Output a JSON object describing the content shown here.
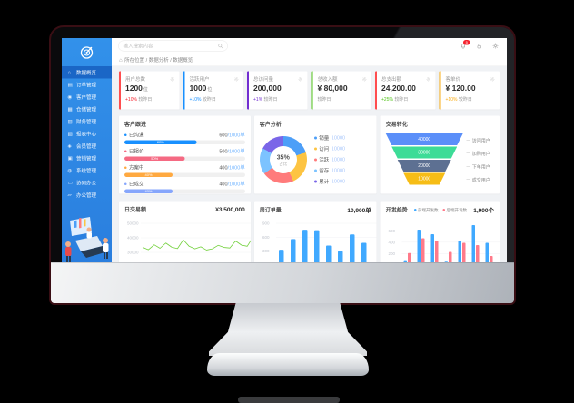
{
  "header": {
    "search_placeholder": "输入搜索内容",
    "breadcrumb": "所在位置 / 数据分析 / 数据概览",
    "home_icon": "⌂",
    "badge": "5"
  },
  "sidebar": {
    "items": [
      {
        "label": "数据概览",
        "icon": "home",
        "glyph": "⌂",
        "active": true
      },
      {
        "label": "订单管理",
        "icon": "orders",
        "glyph": "▤",
        "active": false
      },
      {
        "label": "客户管理",
        "icon": "customers",
        "glyph": "◉",
        "active": false
      },
      {
        "label": "仓储管理",
        "icon": "warehouse",
        "glyph": "▦",
        "active": false
      },
      {
        "label": "财务管理",
        "icon": "finance",
        "glyph": "▥",
        "active": false
      },
      {
        "label": "报表中心",
        "icon": "reports",
        "glyph": "▧",
        "active": false
      },
      {
        "label": "会员管理",
        "icon": "members",
        "glyph": "◈",
        "active": false
      },
      {
        "label": "营销管理",
        "icon": "marketing",
        "glyph": "▣",
        "active": false
      },
      {
        "label": "系统管理",
        "icon": "system",
        "glyph": "◍",
        "active": false
      },
      {
        "label": "协同办公",
        "icon": "collaboration",
        "glyph": "▭",
        "active": false
      },
      {
        "label": "办公管理",
        "icon": "office",
        "glyph": "▱",
        "active": false
      }
    ]
  },
  "stat_cards": [
    {
      "title": "用户总数",
      "value": "1200",
      "unit": "位",
      "delta": "+10%",
      "delta_color": "#f5222d",
      "note": "较昨日",
      "accent": "#ff4d4f"
    },
    {
      "title": "活跃用户",
      "value": "1000",
      "unit": "位",
      "delta": "+10%",
      "delta_color": "#1890ff",
      "note": "较昨日",
      "accent": "#1890ff"
    },
    {
      "title": "总访问量",
      "value": "200,000",
      "unit": "",
      "delta": "+1%",
      "delta_color": "#722ed1",
      "note": "较昨日",
      "accent": "#722ed1"
    },
    {
      "title": "总收入额",
      "value": "¥ 80,000",
      "unit": "",
      "delta": "",
      "delta_color": "#52c41a",
      "note": "较昨日",
      "accent": "#52c41a"
    },
    {
      "title": "总支出额",
      "value": "24,200.00",
      "unit": "",
      "delta": "+25%",
      "delta_color": "#52c41a",
      "note": "较昨日",
      "accent": "#ff4d4f"
    },
    {
      "title": "客单价",
      "value": "¥ 120.00",
      "unit": "",
      "delta": "+10%",
      "delta_color": "#faad14",
      "note": "较昨日",
      "accent": "#faad14"
    }
  ],
  "chart_data": [
    {
      "type": "bar",
      "subtype": "horizontal-progress",
      "title": "客户跟进",
      "rows": [
        {
          "label": "已沟通",
          "done": "600",
          "total_suffix": "/1000单",
          "pct": 60,
          "pct_label": "60%",
          "color": "#1890ff"
        },
        {
          "label": "已报价",
          "done": "500",
          "total_suffix": "/1000单",
          "pct": 50,
          "pct_label": "50%",
          "color": "#f56a83"
        },
        {
          "label": "方案中",
          "done": "400",
          "total_suffix": "/1000单",
          "pct": 40,
          "pct_label": "40%",
          "color": "#ffa940"
        },
        {
          "label": "已成交",
          "done": "400",
          "total_suffix": "/1000单",
          "pct": 40,
          "pct_label": "40%",
          "color": "#86a6fc"
        }
      ]
    },
    {
      "type": "pie",
      "subtype": "donut",
      "title": "客户分析",
      "center_label": "35%",
      "center_sub": "占比",
      "slices": [
        {
          "label": "销量",
          "value": "10000",
          "pct": 20,
          "color": "#4d9ff8"
        },
        {
          "label": "访问",
          "value": "10000",
          "pct": 23,
          "color": "#fdc442"
        },
        {
          "label": "活跃",
          "value": "10000",
          "pct": 22,
          "color": "#ff7b7b"
        },
        {
          "label": "留存",
          "value": "10000",
          "pct": 18,
          "color": "#7cc3ff"
        },
        {
          "label": "累计",
          "value": "10000",
          "pct": 17,
          "color": "#7a66e8"
        }
      ],
      "legend_position": "right"
    },
    {
      "type": "bar",
      "subtype": "funnel",
      "title": "交易转化",
      "tiers": [
        {
          "label": "访问用户",
          "value": "40000",
          "color": "#5b8ff9"
        },
        {
          "label": "加购用户",
          "value": "30000",
          "color": "#3ddc97"
        },
        {
          "label": "下单用户",
          "value": "20000",
          "color": "#5d7092"
        },
        {
          "label": "成交用户",
          "value": "10000",
          "color": "#f6bd16"
        }
      ]
    },
    {
      "type": "line",
      "title": "日交易额",
      "total": "¥3,500,000",
      "color": "#73d13d",
      "yticks": [
        "50000",
        "40000",
        "30000"
      ],
      "ylim": [
        28000,
        52000
      ],
      "values": [
        33500,
        31800,
        35200,
        32800,
        36400,
        33600,
        32600,
        38600,
        34200,
        32400,
        33800,
        31600,
        32400,
        34800,
        33400,
        33000,
        37800,
        35000,
        34200,
        40600
      ],
      "grid": true
    },
    {
      "type": "bar",
      "title": "周订单量",
      "total": "10,900单",
      "color": "#40a9ff",
      "yticks": [
        "900",
        "600",
        "300"
      ],
      "ylim": [
        0,
        900
      ],
      "values": [
        330,
        560,
        760,
        750,
        420,
        300,
        660,
        480
      ],
      "grid": true
    },
    {
      "type": "bar",
      "subtype": "grouped",
      "title": "开发趋势",
      "total": "1,900个",
      "yticks": [
        "600",
        "400",
        "200"
      ],
      "ylim": [
        0,
        700
      ],
      "series": [
        {
          "name": "前端开发数",
          "color": "#40a9ff",
          "values": [
            70,
            620,
            540,
            60,
            430,
            700,
            390
          ]
        },
        {
          "name": "后端开发数",
          "color": "#ff7a8a",
          "values": [
            210,
            470,
            430,
            230,
            390,
            350,
            160
          ]
        }
      ],
      "grid": true
    }
  ]
}
